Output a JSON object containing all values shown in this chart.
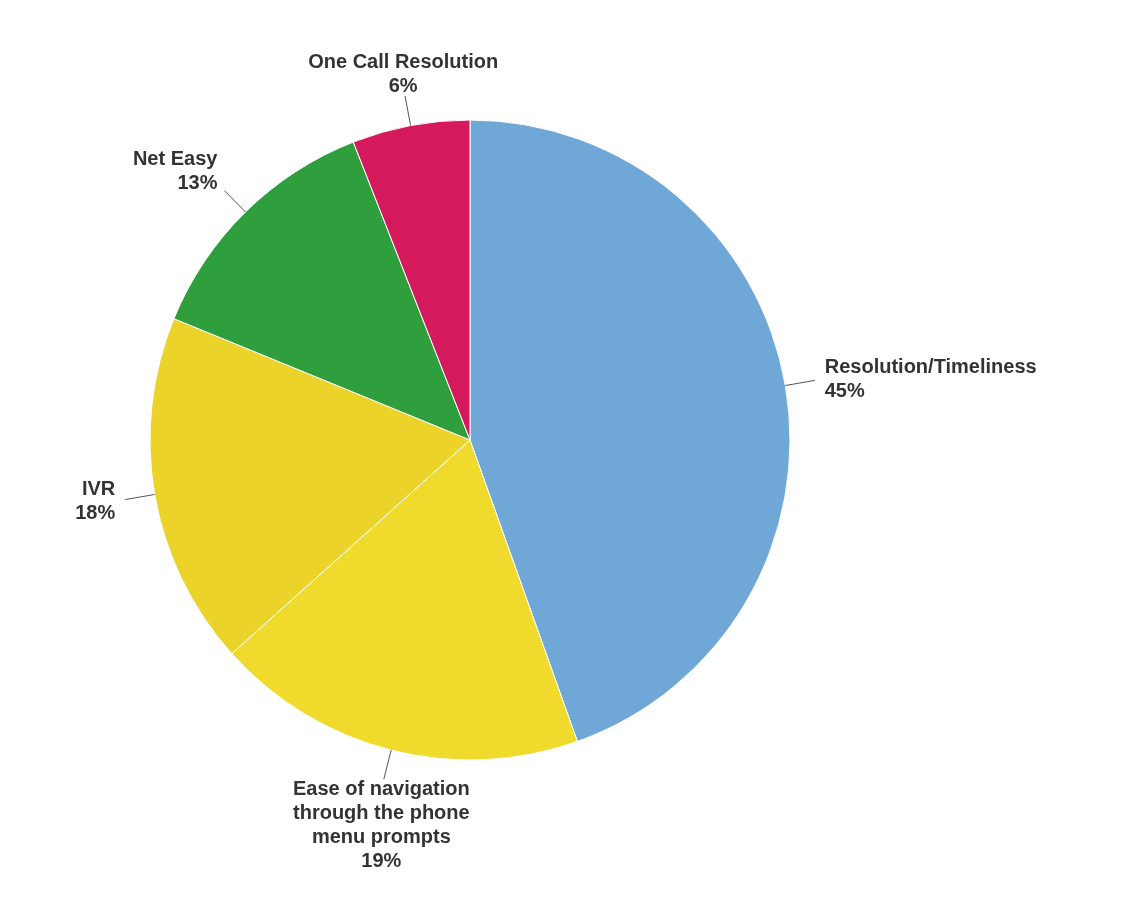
{
  "chart_data": {
    "type": "pie",
    "categories": [
      "Resolution/Timeliness",
      "Ease of navigation through the phone menu prompts",
      "IVR",
      "Net Easy",
      "One Call Resolution"
    ],
    "values": [
      45,
      19,
      18,
      13,
      6
    ],
    "value_labels": [
      "45%",
      "19%",
      "18%",
      "13%",
      "6%"
    ],
    "colors": [
      "#6fa8d6",
      "#f0da2c",
      "#ebd32a",
      "#2f9e3c",
      "#d41a5c"
    ]
  }
}
